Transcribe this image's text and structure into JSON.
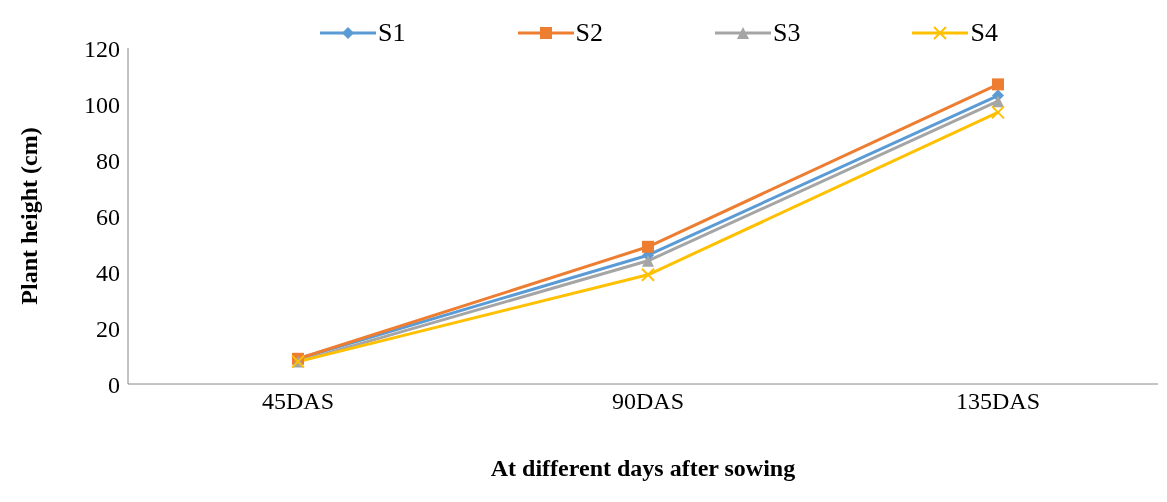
{
  "chart_data": {
    "type": "line",
    "xlabel": "At different days after sowing",
    "ylabel": "Plant height (cm)",
    "categories": [
      "45DAS",
      "90DAS",
      "135DAS"
    ],
    "series": [
      {
        "name": "S1",
        "color": "#5b9bd5",
        "marker": "diamond",
        "values": [
          9,
          46,
          103
        ]
      },
      {
        "name": "S2",
        "color": "#ed7d31",
        "marker": "square",
        "values": [
          9,
          49,
          107
        ]
      },
      {
        "name": "S3",
        "color": "#a5a5a5",
        "marker": "triangle",
        "values": [
          8,
          44,
          101
        ]
      },
      {
        "name": "S4",
        "color": "#ffc000",
        "marker": "cross",
        "values": [
          8,
          39,
          97
        ]
      }
    ],
    "ylim": [
      0,
      120
    ],
    "yticks": [
      0,
      20,
      40,
      60,
      80,
      100,
      120
    ],
    "grid": false,
    "legend": "top"
  }
}
